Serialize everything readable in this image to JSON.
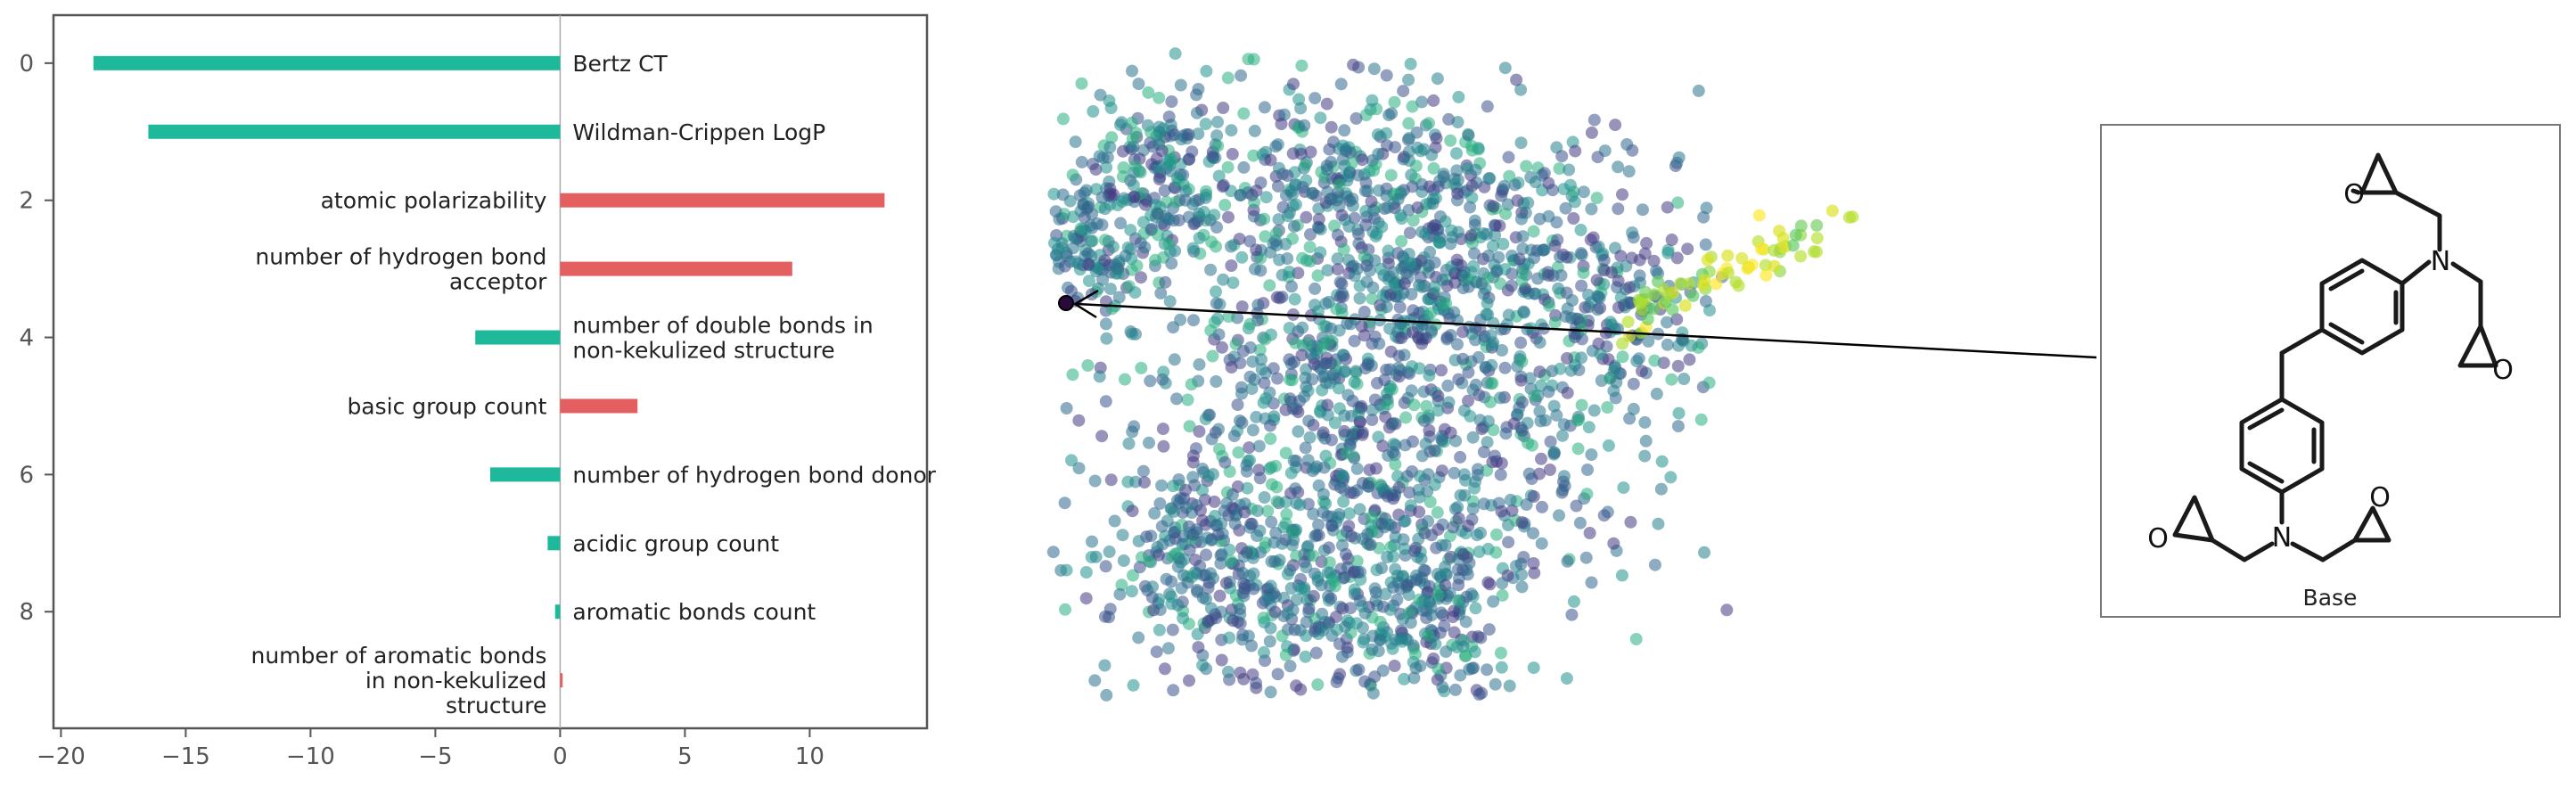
{
  "chart_data": [
    {
      "type": "bar",
      "orientation": "horizontal",
      "categories": [
        "Bertz CT",
        "Wildman-Crippen LogP",
        "atomic polarizability",
        "number of hydrogen bond acceptor",
        "number of double bonds in non-kekulized structure",
        "basic group count",
        "number of hydrogen bond donor",
        "acidic group count",
        "aromatic bonds count",
        "number of aromatic bonds in non-kekulized structure"
      ],
      "label_lines": [
        [
          "Bertz CT"
        ],
        [
          "Wildman-Crippen LogP"
        ],
        [
          "atomic polarizability"
        ],
        [
          "number of hydrogen bond",
          "acceptor"
        ],
        [
          "number of double bonds in",
          "non-kekulized structure"
        ],
        [
          "basic group count"
        ],
        [
          "number of hydrogen bond donor"
        ],
        [
          "acidic group count"
        ],
        [
          "aromatic bonds count"
        ],
        [
          "number of aromatic bonds",
          "in non-kekulized",
          "structure"
        ]
      ],
      "values": [
        -18.7,
        -16.5,
        13.0,
        9.3,
        -3.4,
        3.1,
        -2.8,
        -0.5,
        -0.2,
        0.1
      ],
      "positive_color": "#e45f5f",
      "negative_color": "#1db99a",
      "xlim": [
        -20.3,
        14.7
      ],
      "ylim": [
        9.7,
        -0.7
      ],
      "xticks": [
        "−20",
        "−15",
        "−10",
        "−5",
        "0",
        "5",
        "10"
      ],
      "xtick_values": [
        -20,
        -15,
        -10,
        -5,
        0,
        5,
        10
      ],
      "yticks": [
        "0",
        "2",
        "4",
        "6",
        "8"
      ],
      "ytick_values": [
        0,
        2,
        4,
        6,
        8
      ],
      "grid": false
    },
    {
      "type": "scatter",
      "colormap": "viridis",
      "points_shown": "about 3000",
      "highlighted_point_color": "#2a0a3a",
      "axes_visible": false
    }
  ],
  "molecule_card": {
    "caption": "Base",
    "atom_labels": [
      "O",
      "N",
      "O",
      "O",
      "N",
      "O"
    ]
  }
}
